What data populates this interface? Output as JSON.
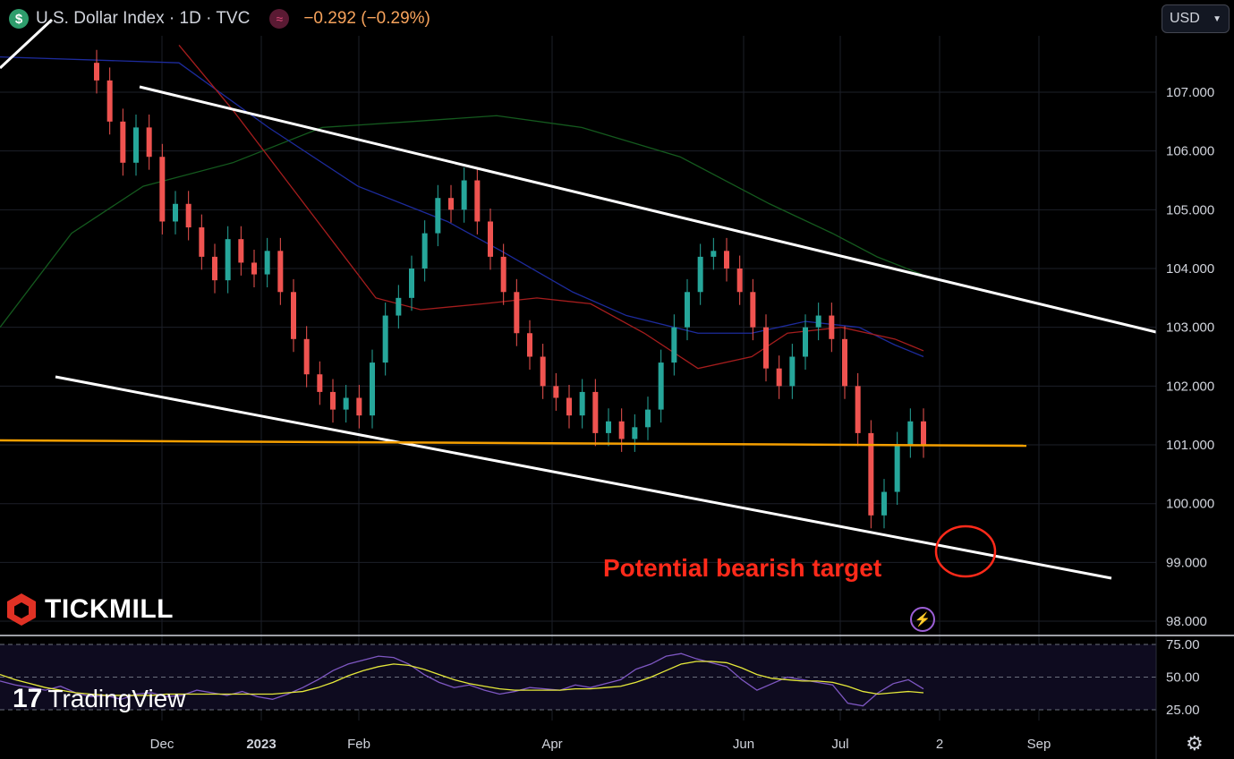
{
  "header": {
    "symbol_icon": "$",
    "title": "U.S. Dollar Index · 1D · TVC",
    "indicator_icon": "≈",
    "change": "−0.292 (−0.29%)"
  },
  "currency_selector": {
    "label": "USD",
    "icon": "chevron-down-icon"
  },
  "watermarks": {
    "broker": "TICKMILL",
    "platform": "TradingView"
  },
  "colors": {
    "up": "#26a69a",
    "down": "#ef5350",
    "ma_fast": "#a51d1d",
    "ma_mid": "#1d2b9c",
    "ma_slow": "#145a1e",
    "channel": "#ffffff",
    "support": "#f59f00",
    "annotation": "#ff2a1a",
    "rsi": "#7e57c2",
    "rsi_ma": "#e5e83a"
  },
  "chart_data": [
    {
      "type": "line",
      "title": "U.S. Dollar Index · 1D · TVC",
      "ylim": [
        97.8,
        107.8
      ],
      "y_ticks": [
        "107.000",
        "106.000",
        "105.000",
        "104.000",
        "103.000",
        "102.000",
        "101.000",
        "100.000",
        "99.000",
        "98.000"
      ],
      "x_ticks": [
        "Dec",
        "2023",
        "Feb",
        "Apr",
        "Jun",
        "Jul",
        "2",
        "Sep"
      ],
      "candles_close": [
        107.2,
        106.5,
        105.8,
        106.4,
        105.9,
        104.8,
        105.1,
        104.7,
        104.2,
        103.8,
        104.5,
        104.1,
        103.9,
        104.3,
        103.6,
        102.8,
        102.2,
        101.9,
        101.6,
        101.8,
        101.5,
        102.4,
        103.2,
        103.5,
        104.0,
        104.6,
        105.2,
        105.0,
        105.5,
        104.8,
        104.2,
        103.6,
        102.9,
        102.5,
        102.0,
        101.8,
        101.5,
        101.9,
        101.2,
        101.4,
        101.1,
        101.3,
        101.6,
        102.4,
        103.0,
        103.6,
        104.2,
        104.3,
        104.0,
        103.6,
        103.0,
        102.3,
        102.0,
        102.5,
        103.0,
        103.2,
        102.8,
        102.0,
        101.2,
        99.8,
        100.2,
        101.0,
        101.4,
        101.0
      ],
      "annotations": [
        "Potential bearish target"
      ],
      "lines": [
        "Descending channel resistance",
        "Descending channel support",
        "Horizontal support 101.000"
      ]
    },
    {
      "type": "line",
      "y_ticks": [
        "75.00",
        "50.00",
        "25.00"
      ],
      "ylim": [
        20,
        80
      ],
      "rsi_values": [
        47,
        44,
        42,
        40,
        43,
        38,
        35,
        36,
        33,
        37,
        38,
        35,
        36,
        40,
        38,
        36,
        39,
        35,
        33,
        37,
        42,
        48,
        55,
        60,
        63,
        66,
        65,
        60,
        52,
        46,
        42,
        44,
        40,
        37,
        39,
        42,
        41,
        40,
        44,
        42,
        45,
        48,
        56,
        60,
        66,
        68,
        64,
        61,
        58,
        48,
        40,
        45,
        50,
        48,
        46,
        44,
        30,
        28,
        38,
        45,
        48,
        41
      ],
      "rsi_ma_values": [
        52,
        48,
        45,
        42,
        40,
        38,
        37,
        36,
        36,
        36,
        36,
        37,
        37,
        37,
        37,
        37,
        37,
        37,
        37,
        38,
        39,
        42,
        46,
        51,
        55,
        58,
        60,
        59,
        56,
        52,
        48,
        45,
        43,
        41,
        40,
        40,
        40,
        40,
        41,
        41,
        42,
        43,
        46,
        50,
        55,
        60,
        62,
        62,
        61,
        57,
        52,
        49,
        48,
        47,
        47,
        46,
        43,
        39,
        37,
        38,
        39,
        38
      ]
    }
  ]
}
